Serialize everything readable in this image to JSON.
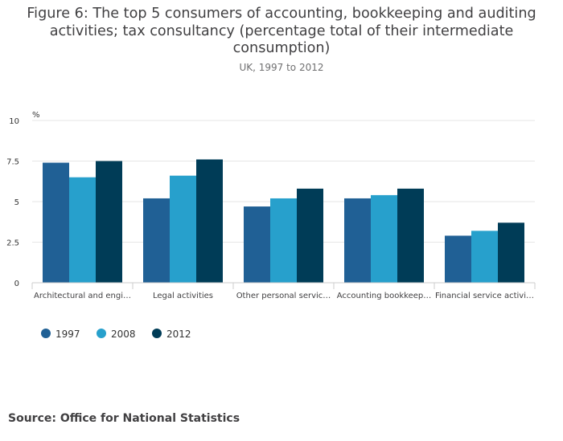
{
  "colors": {
    "s1997": "#206095",
    "s2008": "#27a0cc",
    "s2012": "#003c57",
    "grid": "#e6e6e6",
    "axis": "#cccccc"
  },
  "chart_data": {
    "type": "bar",
    "title": "Figure 6: The top 5 consumers of accounting, bookkeeping and auditing activities; tax consultancy (percentage total of their intermediate consumption)",
    "subtitle": "UK, 1997 to 2012",
    "ylabel": "%",
    "xlabel": "",
    "ylim": [
      0,
      10
    ],
    "yticks": [
      "0",
      "2.5",
      "5",
      "7.5",
      "10"
    ],
    "ytick_values": [
      0,
      2.5,
      5,
      7.5,
      10
    ],
    "categories": [
      "Architectural and engi…",
      "Legal activities",
      "Other personal servic…",
      "Accounting bookkeep…",
      "Financial service activi…"
    ],
    "series": [
      {
        "name": "1997",
        "values": [
          7.4,
          5.2,
          4.7,
          5.2,
          2.9
        ]
      },
      {
        "name": "2008",
        "values": [
          6.5,
          6.6,
          5.2,
          5.4,
          3.2
        ]
      },
      {
        "name": "2012",
        "values": [
          7.5,
          7.6,
          5.8,
          5.8,
          3.7
        ]
      }
    ],
    "legend_position": "bottom-left",
    "grid": true
  },
  "source": "Source: Office for National Statistics"
}
